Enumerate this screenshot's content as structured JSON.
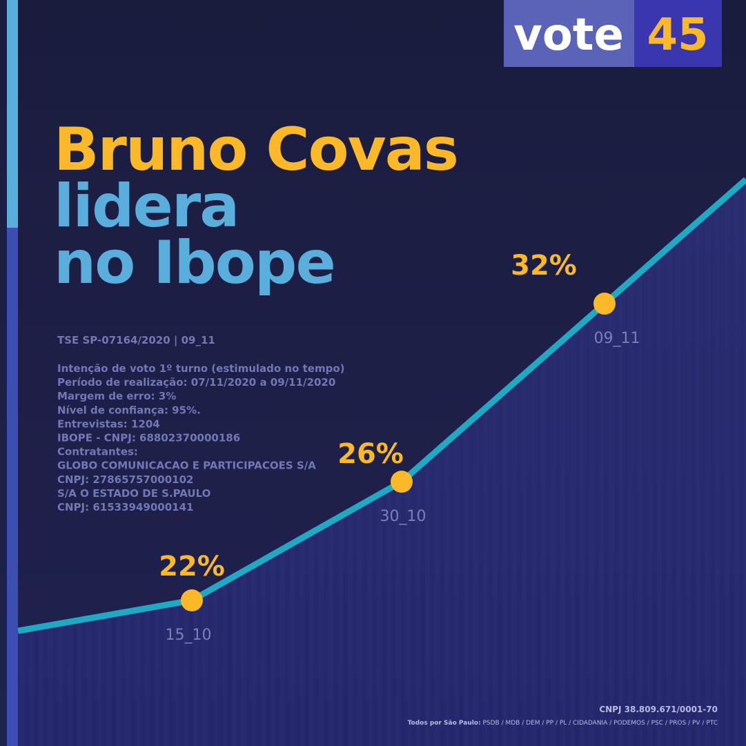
{
  "badge": {
    "word": "vote",
    "number": "45"
  },
  "headline": {
    "line1": "Bruno Covas",
    "line2": "lidera",
    "line3": "no Ibope"
  },
  "info": {
    "registration": "TSE SP-07164/2020 | 09_11",
    "lines": [
      "Intenção de voto 1º turno (estimulado no tempo)",
      "Período de realização: 07/11/2020 a 09/11/2020",
      "Margem de erro: 3%",
      "Nível de confiança: 95%.",
      "Entrevistas: 1204",
      "IBOPE - CNPJ: 68802370000186",
      "Contratantes:",
      "GLOBO COMUNICACAO E PARTICIPACOES S/A",
      "CNPJ: 27865757000102",
      "S/A O ESTADO DE S.PAULO",
      "CNPJ: 61533949000141"
    ]
  },
  "footer": {
    "cnpj": "CNPJ 38.809.671/0001-70",
    "coalition_label": "Todos por São Paulo:",
    "parties": "PSDB / MDB / DEM / PP / PL / CIDADANIA / PODEMOS / PSC / PROS / PV / PTC"
  },
  "chart_data": {
    "type": "line",
    "categories": [
      "15_10",
      "30_10",
      "09_11"
    ],
    "values": [
      22,
      26,
      32
    ],
    "value_labels": [
      "22%",
      "26%",
      "32%"
    ],
    "color": "#1fa9c4",
    "marker_color": "#fbb829",
    "ylim": [
      15,
      35
    ]
  }
}
